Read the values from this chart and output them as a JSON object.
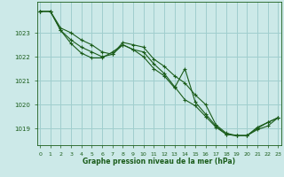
{
  "xlabel": "Graphe pression niveau de la mer (hPa)",
  "background_color": "#cce9e8",
  "grid_color": "#a0cece",
  "line_color": "#1a5c1a",
  "ylim": [
    1018.3,
    1024.3
  ],
  "xlim": [
    -0.3,
    23.3
  ],
  "yticks": [
    1019,
    1020,
    1021,
    1022,
    1023
  ],
  "xticks": [
    0,
    1,
    2,
    3,
    4,
    5,
    6,
    7,
    8,
    9,
    10,
    11,
    12,
    13,
    14,
    15,
    16,
    17,
    18,
    19,
    20,
    21,
    22,
    23
  ],
  "series": [
    [
      1023.9,
      1023.9,
      1023.1,
      1022.7,
      1022.4,
      1022.2,
      1022.0,
      1022.1,
      1022.5,
      1022.3,
      1022.0,
      1021.5,
      1021.2,
      1020.7,
      1021.5,
      1020.1,
      1019.6,
      1019.1,
      1018.75,
      1018.7,
      1018.7,
      1019.0,
      1019.25,
      1019.45
    ],
    [
      1023.9,
      1023.9,
      1023.1,
      1022.55,
      1022.15,
      1021.95,
      1021.95,
      1022.2,
      1022.5,
      1022.3,
      1022.2,
      1021.7,
      1021.3,
      1020.75,
      1020.2,
      1019.95,
      1019.5,
      1019.05,
      1018.75,
      1018.7,
      1018.7,
      1018.95,
      1019.1,
      1019.45
    ],
    [
      1023.9,
      1023.9,
      1023.2,
      1023.0,
      1022.7,
      1022.5,
      1022.2,
      1022.1,
      1022.6,
      1022.5,
      1022.4,
      1021.9,
      1021.6,
      1021.2,
      1020.9,
      1020.4,
      1020.0,
      1019.15,
      1018.8,
      1018.7,
      1018.7,
      1019.05,
      1019.25,
      1019.45
    ]
  ]
}
